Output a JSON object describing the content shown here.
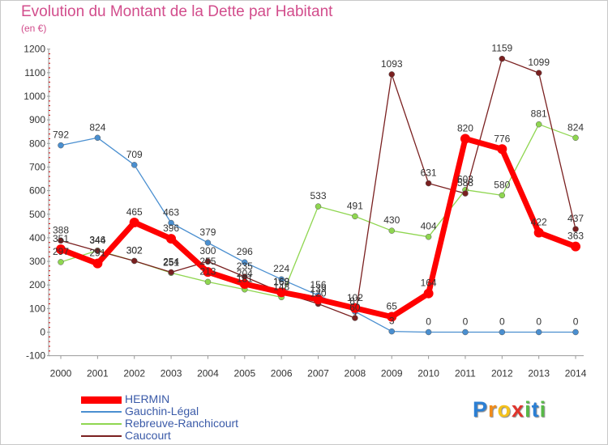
{
  "header": {
    "title": "Evolution du Montant de la Dette par Habitant",
    "subtitle": "(en €)"
  },
  "logo": {
    "text": "Proxiti",
    "letters": [
      "P",
      "r",
      "o",
      "x",
      "i",
      "t",
      "i"
    ]
  },
  "colors": {
    "HERMIN": "#ff0000",
    "Gauchin-Légal": "#4a8fd0",
    "Rebreuve-Ranchicourt": "#8fd650",
    "Caucourt": "#7a2020",
    "axis": "#999999",
    "tick_text": "#333333",
    "accent": "#cc0000"
  },
  "chart_data": {
    "type": "line",
    "title": "Evolution du Montant de la Dette par Habitant",
    "ylabel": "(en €)",
    "xlabel": "",
    "x": [
      "2000",
      "2001",
      "2002",
      "2003",
      "2004",
      "2005",
      "2006",
      "2007",
      "2008",
      "2009",
      "2010",
      "2011",
      "2012",
      "2013",
      "2014"
    ],
    "ylim": [
      -100,
      1200
    ],
    "yticks": [
      -100,
      0,
      100,
      200,
      300,
      400,
      500,
      600,
      700,
      800,
      900,
      1000,
      1100,
      1200
    ],
    "grid": false,
    "legend": "bottom-left",
    "series": [
      {
        "name": "Gauchin-Légal",
        "values": [
          792,
          824,
          709,
          463,
          379,
          296,
          224,
          156,
          87,
          3,
          0,
          0,
          0,
          0,
          0
        ]
      },
      {
        "name": "Rebreuve-Ranchicourt",
        "values": [
          297,
          346,
          302,
          251,
          213,
          181,
          148,
          533,
          491,
          430,
          404,
          603,
          580,
          881,
          824
        ]
      },
      {
        "name": "Caucourt",
        "values": [
          388,
          344,
          302,
          254,
          300,
          235,
          168,
          120,
          60,
          1093,
          631,
          588,
          1159,
          1099,
          437
        ]
      },
      {
        "name": "HERMIN",
        "values": [
          351,
          291,
          465,
          396,
          255,
          204,
          169,
          139,
          102,
          65,
          164,
          820,
          776,
          422,
          363
        ]
      }
    ]
  },
  "legend": {
    "items": [
      "HERMIN",
      "Gauchin-Légal",
      "Rebreuve-Ranchicourt",
      "Caucourt"
    ]
  }
}
